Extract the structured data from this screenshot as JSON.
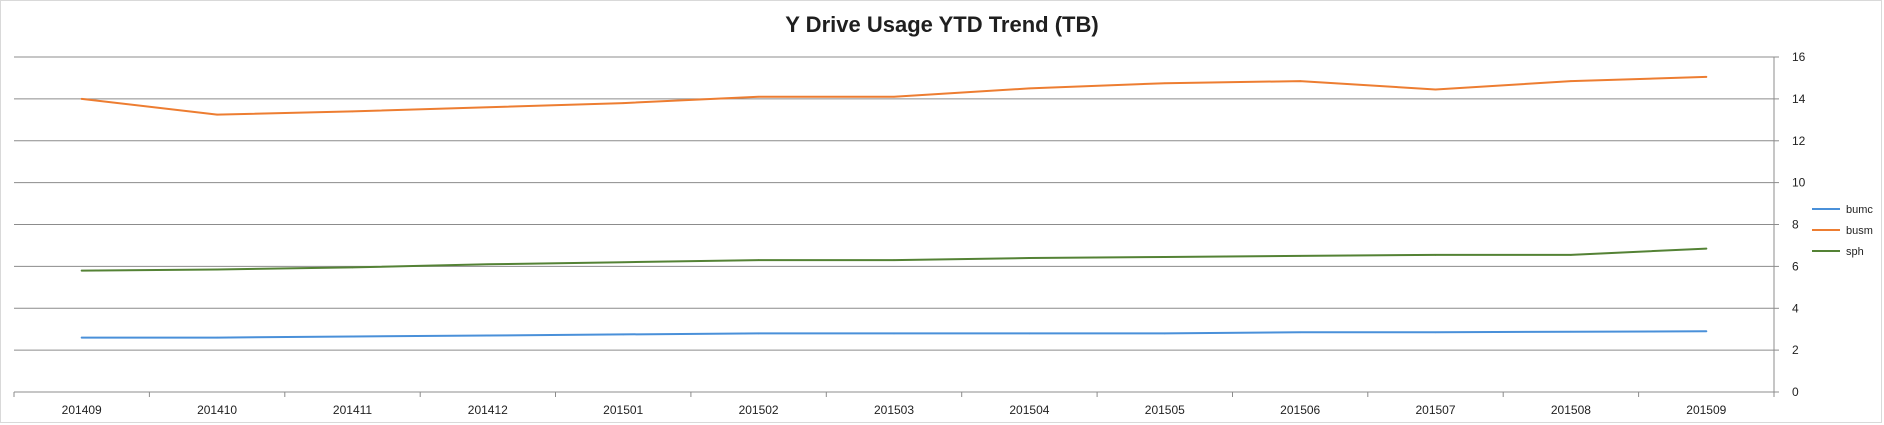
{
  "chart_data": {
    "type": "line",
    "title": "Y Drive Usage YTD Trend (TB)",
    "categories": [
      "201409",
      "201410",
      "201411",
      "201412",
      "201501",
      "201502",
      "201503",
      "201504",
      "201505",
      "201506",
      "201507",
      "201508",
      "201509"
    ],
    "series": [
      {
        "name": "bumc",
        "color": "#4a90d9",
        "values": [
          2.6,
          2.6,
          2.65,
          2.7,
          2.75,
          2.8,
          2.8,
          2.8,
          2.8,
          2.85,
          2.85,
          2.88,
          2.9
        ]
      },
      {
        "name": "busm",
        "color": "#ed7d31",
        "values": [
          14.0,
          13.25,
          13.4,
          13.6,
          13.8,
          14.1,
          14.1,
          14.5,
          14.75,
          14.85,
          14.45,
          14.85,
          15.05
        ]
      },
      {
        "name": "sph",
        "color": "#548235",
        "values": [
          5.8,
          5.85,
          5.95,
          6.1,
          6.2,
          6.3,
          6.3,
          6.4,
          6.45,
          6.5,
          6.55,
          6.55,
          6.85
        ]
      }
    ],
    "ylim": [
      0,
      16
    ],
    "yticks": [
      "0",
      "2",
      "4",
      "6",
      "8",
      "10",
      "12",
      "14",
      "16"
    ],
    "y_axis_side": "right",
    "grid": true,
    "legend_position": "right"
  }
}
